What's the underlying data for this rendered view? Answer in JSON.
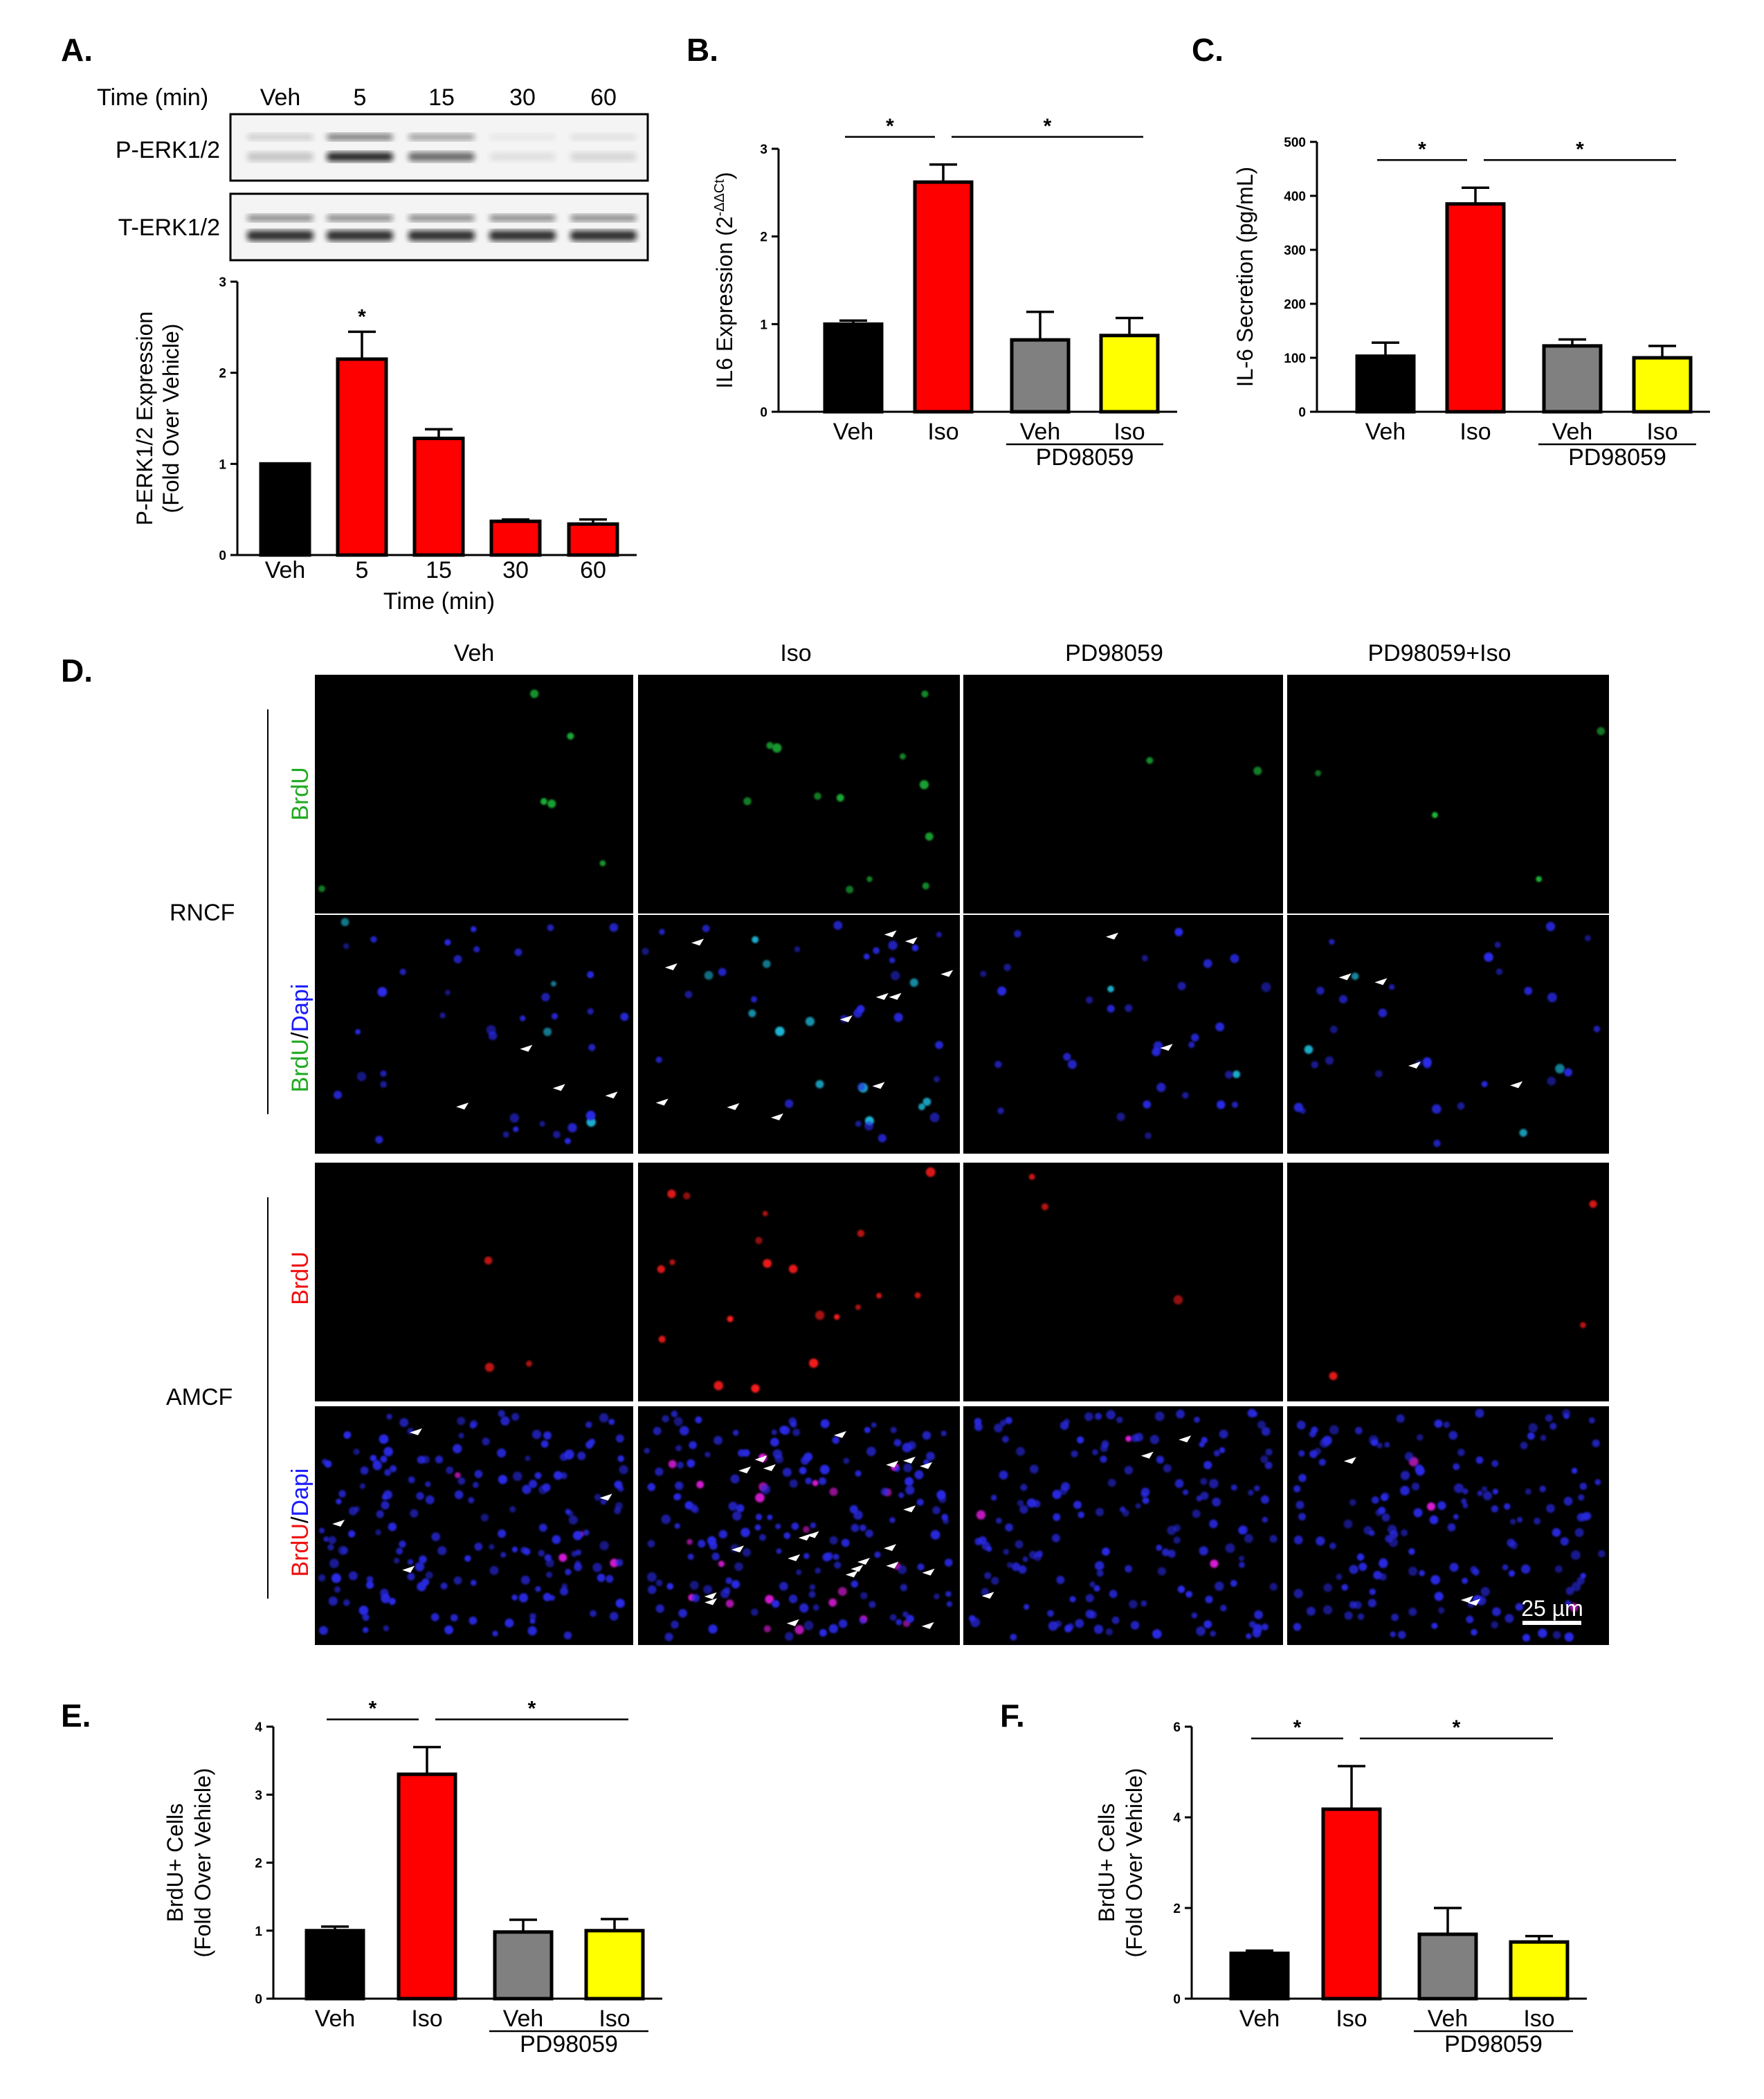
{
  "panel_labels": [
    "A.",
    "B.",
    "C.",
    "D.",
    "E.",
    "F."
  ],
  "colors": {
    "black": "#000000",
    "red": "#ff0000",
    "gray": "#808080",
    "yellow": "#ffff00",
    "bg_micro": "#000000"
  },
  "western": {
    "time_label": "Time (min)",
    "lanes": [
      "Veh",
      "5",
      "15",
      "30",
      "60"
    ],
    "rows": [
      "P-ERK1/2",
      "T-ERK1/2"
    ]
  },
  "micro": {
    "col_headers": [
      "Veh",
      "Iso",
      "PD98059",
      "PD98059+Iso"
    ],
    "groups": [
      "RNCF",
      "AMCF"
    ],
    "row_labels": [
      [
        {
          "t": "BrdU",
          "c": "#22aa22"
        }
      ],
      [
        {
          "t": "BrdU",
          "c": "#22aa22"
        },
        {
          "t": "/",
          "c": "#000000"
        },
        {
          "t": "Dapi",
          "c": "#1a1aff"
        }
      ],
      [
        {
          "t": "BrdU",
          "c": "#ee1111"
        }
      ],
      [
        {
          "t": "BrdU",
          "c": "#ee1111"
        },
        {
          "t": "/",
          "c": "#000000"
        },
        {
          "t": "Dapi",
          "c": "#1a1aff"
        }
      ]
    ],
    "scale_bar": "25 µm"
  },
  "chart_data": [
    {
      "id": "A",
      "type": "bar",
      "categories": [
        "Veh",
        "5",
        "15",
        "30",
        "60"
      ],
      "values": [
        1.0,
        2.15,
        1.28,
        0.37,
        0.34
      ],
      "errors": [
        0,
        0.3,
        0.1,
        0.02,
        0.05
      ],
      "colors": [
        "#000000",
        "#ff0000",
        "#ff0000",
        "#ff0000",
        "#ff0000"
      ],
      "ylim": [
        0,
        3
      ],
      "yticks": [
        0,
        1,
        2,
        3
      ],
      "ylabel_lines": [
        "P-ERK1/2 Expression",
        "(Fold Over Vehicle)"
      ],
      "xlabel": "Time (min)",
      "stars_on": [
        1
      ],
      "group_label": ""
    },
    {
      "id": "B",
      "type": "bar",
      "categories": [
        "Veh",
        "Iso",
        "Veh",
        "Iso"
      ],
      "values": [
        1.0,
        2.62,
        0.82,
        0.87
      ],
      "errors": [
        0.04,
        0.2,
        0.32,
        0.2
      ],
      "colors": [
        "#000000",
        "#ff0000",
        "#808080",
        "#ffff00"
      ],
      "ylim": [
        0,
        3
      ],
      "yticks": [
        0,
        1,
        2,
        3
      ],
      "ylabel_main": "IL6 Expression (2",
      "ylabel_sup": "-ΔΔCt",
      "ylabel_end": ")",
      "sig": [
        [
          0,
          1
        ],
        [
          1,
          3
        ]
      ],
      "group_label": "PD98059"
    },
    {
      "id": "C",
      "type": "bar",
      "categories": [
        "Veh",
        "Iso",
        "Veh",
        "Iso"
      ],
      "values": [
        103,
        385,
        122,
        100
      ],
      "errors": [
        25,
        30,
        12,
        22
      ],
      "colors": [
        "#000000",
        "#ff0000",
        "#808080",
        "#ffff00"
      ],
      "ylim": [
        0,
        500
      ],
      "yticks": [
        0,
        100,
        200,
        300,
        400,
        500
      ],
      "ylabel": "IL-6 Secretion (pg/mL)",
      "sig": [
        [
          0,
          1
        ],
        [
          1,
          3
        ]
      ],
      "group_label": "PD98059"
    },
    {
      "id": "E",
      "type": "bar",
      "categories": [
        "Veh",
        "Iso",
        "Veh",
        "Iso"
      ],
      "values": [
        1.0,
        3.3,
        0.98,
        1.0
      ],
      "errors": [
        0.06,
        0.4,
        0.18,
        0.17
      ],
      "colors": [
        "#000000",
        "#ff0000",
        "#808080",
        "#ffff00"
      ],
      "ylim": [
        0,
        4
      ],
      "yticks": [
        0,
        1,
        2,
        3,
        4
      ],
      "ylabel_lines": [
        "BrdU+ Cells",
        "(Fold Over Vehicle)"
      ],
      "sig": [
        [
          0,
          1
        ],
        [
          1,
          3
        ]
      ],
      "group_label": "PD98059"
    },
    {
      "id": "F",
      "type": "bar",
      "categories": [
        "Veh",
        "Iso",
        "Veh",
        "Iso"
      ],
      "values": [
        1.0,
        4.18,
        1.42,
        1.25
      ],
      "errors": [
        0.06,
        0.95,
        0.58,
        0.13
      ],
      "colors": [
        "#000000",
        "#ff0000",
        "#808080",
        "#ffff00"
      ],
      "ylim": [
        0,
        6
      ],
      "yticks": [
        0,
        2,
        4,
        6
      ],
      "ylabel_lines": [
        "BrdU+ Cells",
        "(Fold Over Vehicle)"
      ],
      "sig": [
        [
          0,
          1
        ],
        [
          1,
          3
        ]
      ],
      "group_label": "PD98059"
    }
  ]
}
